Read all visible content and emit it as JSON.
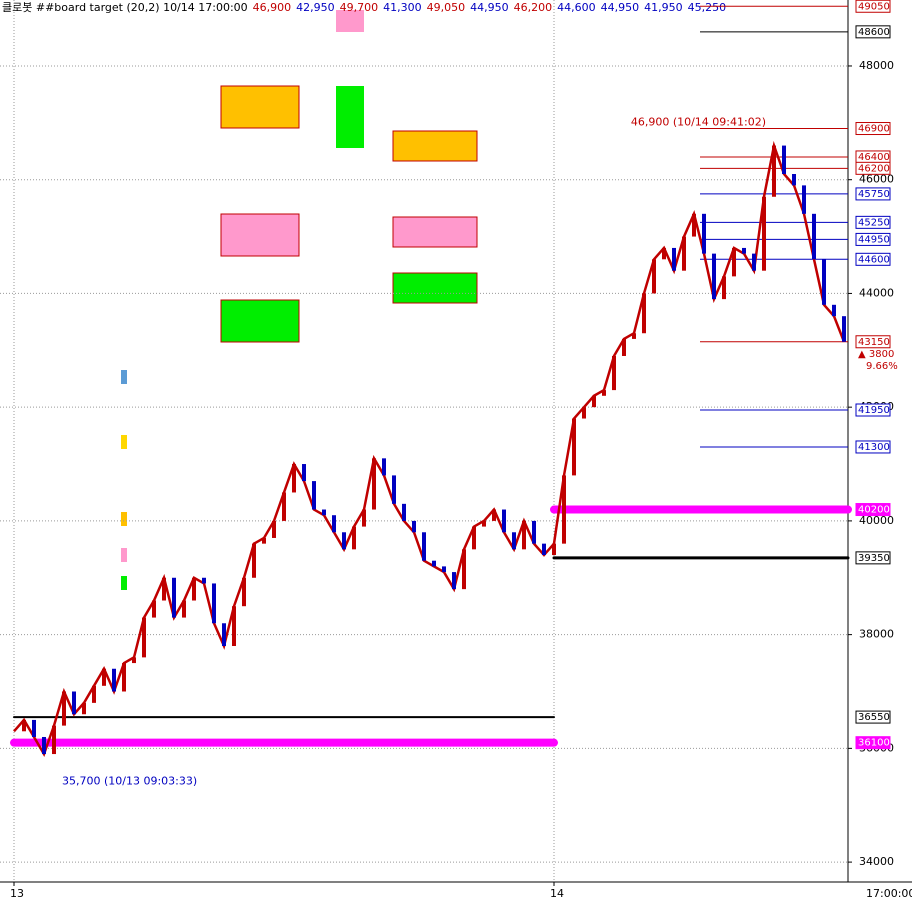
{
  "chart_data": {
    "type": "line",
    "header": {
      "title": "클로봇 ##board target  (20,2) 10/14 17:00:00",
      "quotes": [
        {
          "text": "46,900",
          "color": "#c00000"
        },
        {
          "text": "42,950",
          "color": "#0000c0"
        },
        {
          "text": "49,700",
          "color": "#c00000"
        },
        {
          "text": "41,300",
          "color": "#0000c0"
        },
        {
          "text": "49,050",
          "color": "#c00000"
        },
        {
          "text": "44,950",
          "color": "#0000c0"
        },
        {
          "text": "46,200",
          "color": "#c00000"
        },
        {
          "text": "44,600",
          "color": "#0000c0"
        },
        {
          "text": "44,950",
          "color": "#0000c0"
        },
        {
          "text": "41,950",
          "color": "#0000c0"
        },
        {
          "text": "45,250",
          "color": "#0000c0"
        }
      ]
    },
    "categories": [
      "13",
      null,
      null,
      null,
      null,
      null,
      null,
      null,
      null,
      null,
      null,
      null,
      null,
      null,
      null,
      null,
      null,
      null,
      null,
      null,
      null,
      null,
      null,
      null,
      null,
      null,
      null,
      null,
      null,
      null,
      null,
      null,
      null,
      null,
      null,
      null,
      null,
      null,
      null,
      null,
      null,
      null,
      null,
      null,
      null,
      null,
      null,
      null,
      null,
      null,
      null,
      null,
      null,
      null,
      "14",
      null,
      null,
      null,
      null,
      null,
      null,
      null,
      null,
      null,
      null,
      null,
      null,
      null,
      null,
      null,
      null,
      null,
      null,
      null,
      null,
      null,
      null,
      null,
      null,
      null,
      null,
      null,
      null,
      null
    ],
    "series": [
      {
        "color": "#c00000",
        "values": [
          36300,
          36500,
          36200,
          35900,
          36400,
          37000,
          36600,
          36800,
          37100,
          37400,
          37000,
          37500,
          37600,
          38300,
          38600,
          39000,
          38300,
          38600,
          39000,
          38900,
          38200,
          37800,
          38500,
          39000,
          39600,
          39700,
          40000,
          40500,
          41000,
          40700,
          40200,
          40100,
          39800,
          39500,
          39900,
          40200,
          41100,
          40800,
          40300,
          40000,
          39800,
          39300,
          39200,
          39100,
          38800,
          39500,
          39900,
          40000,
          40200,
          39800,
          39500,
          40000,
          39600,
          39400,
          39600,
          40800,
          41800,
          42000,
          42200,
          42300,
          42900,
          43200,
          43300,
          44000,
          44600,
          44800,
          44400,
          45000,
          45400,
          44700,
          43900,
          44300,
          44800,
          44700,
          44400,
          45700,
          46600,
          46100,
          45900,
          45400,
          44600,
          43800,
          43600,
          43150
        ]
      }
    ],
    "ylim": [
      33650,
      49160
    ],
    "yticks": [
      34000,
      36000,
      38000,
      40000,
      42000,
      44000,
      46000,
      48000
    ],
    "grid": true,
    "time_label": "17:00:00",
    "levels": [
      {
        "value": 49050,
        "color": "#c00000"
      },
      {
        "value": 48600,
        "color": "#000000"
      },
      {
        "value": 46900,
        "color": "#c00000"
      },
      {
        "value": 46400,
        "color": "#c00000"
      },
      {
        "value": 46200,
        "color": "#c00000"
      },
      {
        "value": 45750,
        "color": "#0000c0"
      },
      {
        "value": 45250,
        "color": "#0000c0"
      },
      {
        "value": 44950,
        "color": "#0000c0"
      },
      {
        "value": 44600,
        "color": "#0000c0"
      },
      {
        "value": 43150,
        "color": "#c00000"
      },
      {
        "value": 41950,
        "color": "#0000c0"
      },
      {
        "value": 41300,
        "color": "#0000c0"
      },
      {
        "value": 40200,
        "color": "#ff00ff",
        "line_from": 54,
        "width": 8
      },
      {
        "value": 39350,
        "color": "#000000",
        "line_from": 54,
        "width": 3
      },
      {
        "value": 36550,
        "color": "#000000",
        "line_from": 0,
        "line_to": 54,
        "width": 2
      },
      {
        "value": 36100,
        "color": "#ff00ff",
        "line_from": 0,
        "line_to": 54,
        "width": 8
      }
    ],
    "annotations": [
      {
        "text": "46,900 (10/14 09:41:02)",
        "value": 46900,
        "index": 76,
        "color": "#c00000"
      },
      {
        "text": "35,700 (10/13 09:03:33)",
        "value": 35700,
        "index": 3,
        "color": "#0000c0"
      }
    ],
    "change": {
      "text": "▲ 3800",
      "percent": "9.66%",
      "color": "#c00000"
    }
  }
}
